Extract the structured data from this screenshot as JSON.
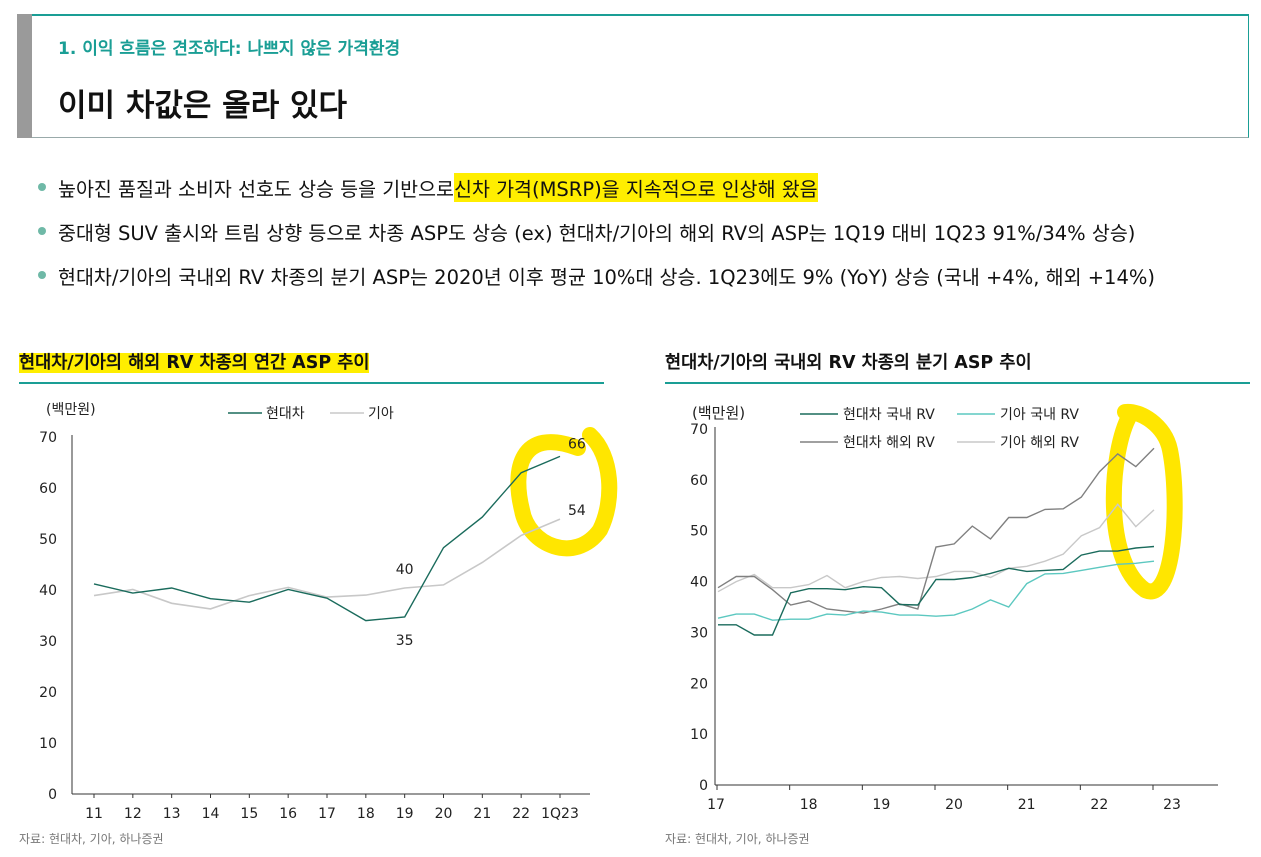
{
  "header": {
    "subtitle": "1. 이익 흐름은 견조하다: 나쁘지 않은 가격환경",
    "title": "이미 차값은 올라 있다"
  },
  "bullets": [
    {
      "pre": "높아진 품질과 소비자 선호도 상승 등을 기반으로 ",
      "highlight": "신차 가격(MSRP)을 지속적으로 인상해 왔음"
    },
    {
      "pre": "중대형 SUV 출시와 트림 상향 등으로 차종 ASP도 상승 (ex) 현대차/기아의 해외 RV의 ASP는 1Q19 대비 1Q23 91%/34% 상승)",
      "highlight": ""
    },
    {
      "pre": "현대차/기아의 국내외 RV 차종의 분기 ASP는 2020년 이후 평균 10%대 상승. 1Q23에도 9% (YoY) 상승 (국내 +4%, 해외 +14%)",
      "highlight": ""
    }
  ],
  "colors": {
    "teal": "#1a9e95",
    "hyundai": "#1a6b5c",
    "kia": "#c8c8c8",
    "highlight": "#ffee00",
    "hyundai_overseas": "#808080",
    "kia_domestic": "#5cc8c0"
  },
  "charts": {
    "left_title": "현대차/기아의 해외 RV 차종의 연간 ASP 추이",
    "right_title": "현대차/기아의 국내외 RV 차종의 분기 ASP 추이",
    "left_source": "자료: 현대차, 기아, 하나증권",
    "right_source": "자료: 현대차, 기아, 하나증권"
  },
  "chart_data": [
    {
      "type": "line",
      "title": "현대차/기아의 해외 RV 차종의 연간 ASP 추이",
      "ylabel": "(백만원)",
      "ylim": [
        0,
        70
      ],
      "yticks": [
        0,
        10,
        20,
        30,
        40,
        50,
        60,
        70
      ],
      "categories": [
        "11",
        "12",
        "13",
        "14",
        "15",
        "16",
        "17",
        "18",
        "19",
        "20",
        "21",
        "22",
        "1Q23"
      ],
      "series": [
        {
          "name": "현대차",
          "color": "#1a6b5c",
          "values": [
            41.2,
            39.4,
            40.4,
            38.3,
            37.6,
            40.1,
            38.4,
            34.0,
            34.7,
            48.3,
            54.3,
            63.0,
            66.2
          ]
        },
        {
          "name": "기아",
          "color": "#c8c8c8",
          "values": [
            38.9,
            40.1,
            37.4,
            36.3,
            38.9,
            40.5,
            38.6,
            39.0,
            40.4,
            41.0,
            45.4,
            50.7,
            53.9
          ]
        }
      ],
      "data_labels": [
        {
          "text": "66",
          "series": 0,
          "index": 12
        },
        {
          "text": "54",
          "series": 1,
          "index": 12
        },
        {
          "text": "40",
          "series": 1,
          "index": 8
        },
        {
          "text": "35",
          "series": 0,
          "index": 8
        }
      ],
      "legend": "top-center",
      "grid": false
    },
    {
      "type": "line",
      "title": "현대차/기아의 국내외 RV 차종의 분기 ASP 추이",
      "ylabel": "(백만원)",
      "ylim": [
        0,
        70
      ],
      "yticks": [
        0,
        10,
        20,
        30,
        40,
        50,
        60,
        70
      ],
      "xticks": [
        "17",
        "18",
        "19",
        "20",
        "21",
        "22",
        "23"
      ],
      "x": [
        "1Q17",
        "2Q17",
        "3Q17",
        "4Q17",
        "1Q18",
        "2Q18",
        "3Q18",
        "4Q18",
        "1Q19",
        "2Q19",
        "3Q19",
        "4Q19",
        "1Q20",
        "2Q20",
        "3Q20",
        "4Q20",
        "1Q21",
        "2Q21",
        "3Q21",
        "4Q21",
        "1Q22",
        "2Q22",
        "3Q22",
        "4Q22",
        "1Q23"
      ],
      "series": [
        {
          "name": "현대차 국내 RV",
          "color": "#1a6b5c",
          "values": [
            31.5,
            31.5,
            29.5,
            29.5,
            37.8,
            38.6,
            38.6,
            38.4,
            39.0,
            38.8,
            35.5,
            35.4,
            40.4,
            40.4,
            40.8,
            41.6,
            42.6,
            42.0,
            42.2,
            42.4,
            45.2,
            46.0,
            46.0,
            46.6,
            46.9
          ]
        },
        {
          "name": "기아 국내 RV",
          "color": "#5cc8c0",
          "values": [
            32.8,
            33.6,
            33.6,
            32.4,
            32.6,
            32.6,
            33.6,
            33.4,
            34.2,
            34.0,
            33.4,
            33.4,
            33.2,
            33.4,
            34.6,
            36.4,
            35.0,
            39.6,
            41.5,
            41.6,
            42.2,
            42.8,
            43.4,
            43.6,
            44.0
          ]
        },
        {
          "name": "현대차 해외 RV",
          "color": "#808080",
          "values": [
            38.8,
            41.0,
            41.0,
            38.4,
            35.4,
            36.2,
            34.6,
            34.2,
            33.8,
            34.6,
            35.6,
            34.6,
            46.8,
            47.4,
            50.9,
            48.4,
            52.6,
            52.6,
            54.2,
            54.3,
            56.6,
            61.6,
            65.1,
            62.6,
            66.2
          ]
        },
        {
          "name": "기아 해외 RV",
          "color": "#c8c8c8",
          "values": [
            38.0,
            40.0,
            41.4,
            38.8,
            38.8,
            39.4,
            41.2,
            38.8,
            40.0,
            40.8,
            41.0,
            40.6,
            41.0,
            42.0,
            42.0,
            40.8,
            42.6,
            43.0,
            44.0,
            45.4,
            49.0,
            50.6,
            55.2,
            50.8,
            54.1
          ]
        }
      ],
      "legend": "top",
      "grid": false
    }
  ]
}
